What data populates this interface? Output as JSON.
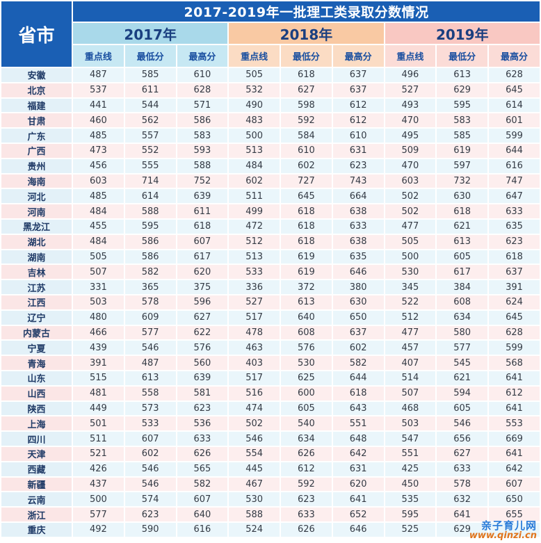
{
  "title": "2017-2019年一批理工类录取分数情况",
  "province_header": "省市",
  "years": [
    "2017年",
    "2018年",
    "2019年"
  ],
  "sub_headers": [
    "重点线",
    "最低分",
    "最高分"
  ],
  "rows": [
    {
      "province": "安徽",
      "v": [
        487,
        585,
        610,
        505,
        618,
        637,
        496,
        613,
        628
      ]
    },
    {
      "province": "北京",
      "v": [
        537,
        611,
        628,
        532,
        627,
        637,
        527,
        629,
        645
      ]
    },
    {
      "province": "福建",
      "v": [
        441,
        544,
        571,
        490,
        598,
        612,
        493,
        595,
        614
      ]
    },
    {
      "province": "甘肃",
      "v": [
        460,
        562,
        586,
        483,
        592,
        612,
        470,
        583,
        601
      ]
    },
    {
      "province": "广东",
      "v": [
        485,
        557,
        583,
        500,
        584,
        610,
        495,
        585,
        599
      ]
    },
    {
      "province": "广西",
      "v": [
        473,
        552,
        593,
        513,
        610,
        631,
        509,
        619,
        644
      ]
    },
    {
      "province": "贵州",
      "v": [
        456,
        555,
        588,
        484,
        602,
        623,
        470,
        597,
        616
      ]
    },
    {
      "province": "海南",
      "v": [
        603,
        714,
        752,
        602,
        727,
        743,
        603,
        732,
        747
      ]
    },
    {
      "province": "河北",
      "v": [
        485,
        614,
        639,
        511,
        645,
        664,
        502,
        630,
        647
      ]
    },
    {
      "province": "河南",
      "v": [
        484,
        588,
        611,
        499,
        618,
        638,
        502,
        618,
        633
      ]
    },
    {
      "province": "黑龙江",
      "v": [
        455,
        595,
        618,
        472,
        618,
        633,
        477,
        621,
        635
      ]
    },
    {
      "province": "湖北",
      "v": [
        484,
        586,
        607,
        512,
        618,
        638,
        505,
        613,
        623
      ]
    },
    {
      "province": "湖南",
      "v": [
        505,
        586,
        617,
        513,
        619,
        635,
        500,
        605,
        618
      ]
    },
    {
      "province": "吉林",
      "v": [
        507,
        582,
        620,
        533,
        619,
        646,
        530,
        617,
        637
      ]
    },
    {
      "province": "江苏",
      "v": [
        331,
        365,
        375,
        336,
        372,
        380,
        345,
        384,
        391
      ]
    },
    {
      "province": "江西",
      "v": [
        503,
        578,
        596,
        527,
        613,
        630,
        522,
        608,
        624
      ]
    },
    {
      "province": "辽宁",
      "v": [
        480,
        609,
        627,
        517,
        640,
        650,
        512,
        634,
        645
      ]
    },
    {
      "province": "内蒙古",
      "v": [
        466,
        577,
        622,
        478,
        608,
        637,
        477,
        580,
        628
      ]
    },
    {
      "province": "宁夏",
      "v": [
        439,
        546,
        576,
        463,
        576,
        602,
        457,
        577,
        599
      ]
    },
    {
      "province": "青海",
      "v": [
        391,
        487,
        560,
        403,
        530,
        582,
        407,
        545,
        568
      ]
    },
    {
      "province": "山东",
      "v": [
        515,
        613,
        639,
        517,
        625,
        644,
        514,
        621,
        641
      ]
    },
    {
      "province": "山西",
      "v": [
        481,
        558,
        581,
        516,
        600,
        618,
        507,
        594,
        612
      ]
    },
    {
      "province": "陕西",
      "v": [
        449,
        573,
        623,
        474,
        605,
        643,
        468,
        605,
        641
      ]
    },
    {
      "province": "上海",
      "v": [
        501,
        533,
        536,
        502,
        540,
        551,
        503,
        546,
        553
      ]
    },
    {
      "province": "四川",
      "v": [
        511,
        607,
        633,
        546,
        634,
        648,
        547,
        656,
        669
      ]
    },
    {
      "province": "天津",
      "v": [
        521,
        602,
        626,
        554,
        626,
        642,
        551,
        627,
        641
      ]
    },
    {
      "province": "西藏",
      "v": [
        426,
        546,
        565,
        445,
        612,
        631,
        425,
        633,
        642
      ]
    },
    {
      "province": "新疆",
      "v": [
        437,
        546,
        582,
        467,
        592,
        620,
        450,
        578,
        607
      ]
    },
    {
      "province": "云南",
      "v": [
        500,
        574,
        607,
        530,
        623,
        641,
        535,
        632,
        650
      ]
    },
    {
      "province": "浙江",
      "v": [
        577,
        623,
        640,
        588,
        633,
        652,
        595,
        641,
        655
      ]
    },
    {
      "province": "重庆",
      "v": [
        492,
        590,
        616,
        524,
        626,
        646,
        525,
        629,
        ""
      ]
    }
  ],
  "watermark": {
    "line1": "亲子育儿网",
    "line2": "www.qinzi.cn"
  },
  "colors": {
    "header_blue": "#1a5fb4",
    "y2017": "#a9d9ea",
    "y2018": "#f9c9a3",
    "y2019": "#f9c8c2"
  }
}
